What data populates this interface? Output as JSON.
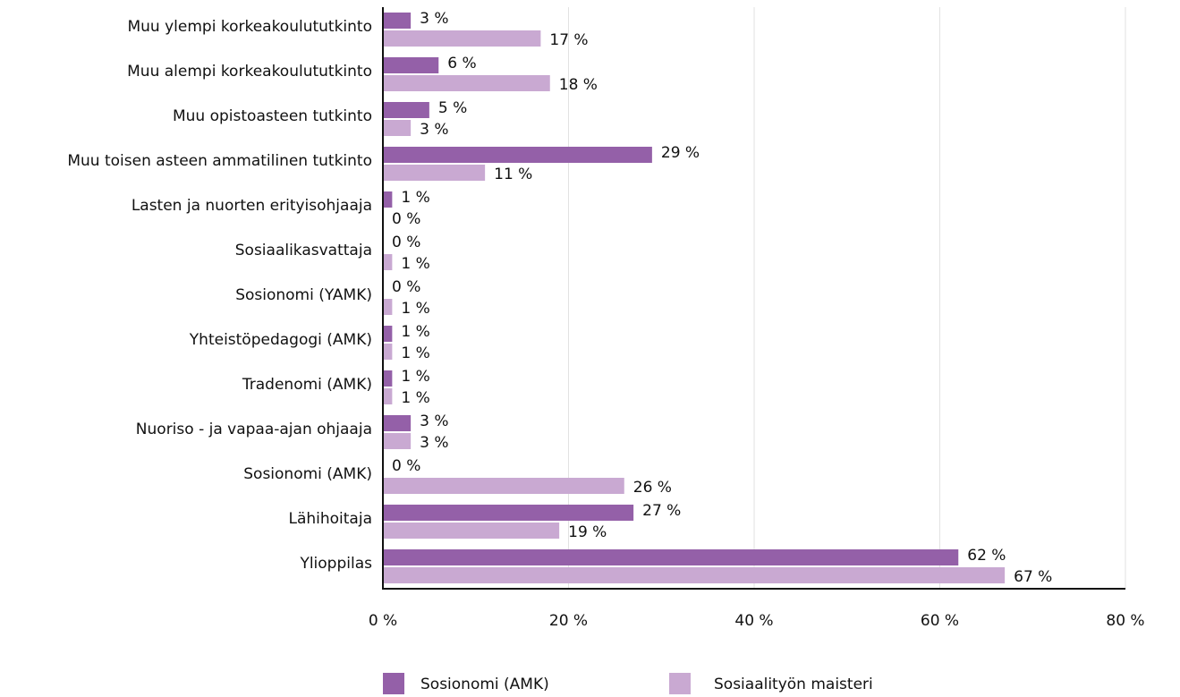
{
  "chart_data": {
    "type": "hbar",
    "categories": [
      "Muu ylempi korkeakoulututkinto",
      "Muu alempi korkeakoulututkinto",
      "Muu opistoasteen tutkinto",
      "Muu toisen asteen ammatilinen tutkinto",
      "Lasten ja nuorten erityisohjaaja",
      "Sosiaalikasvattaja",
      "Sosionomi (YAMK)",
      "Yhteistöpedagogi (AMK)",
      "Tradenomi (AMK)",
      "Nuoriso - ja vapaa-ajan ohjaaja",
      "Sosionomi (AMK)",
      "Lähihoitaja",
      "Ylioppilas"
    ],
    "series": [
      {
        "name": "Sosionomi (AMK)",
        "color": "#9460a8",
        "values": [
          3,
          6,
          5,
          29,
          1,
          0,
          0,
          1,
          1,
          3,
          0,
          27,
          62
        ],
        "value_labels": [
          "3 %",
          "6 %",
          "5 %",
          "29 %",
          "1 %",
          "0 %",
          "0 %",
          "1 %",
          "1 %",
          "3 %",
          "0 %",
          "27 %",
          "62 %"
        ]
      },
      {
        "name": "Sosiaalityön maisteri",
        "color": "#c9a9d2",
        "values": [
          17,
          18,
          3,
          11,
          0,
          1,
          1,
          1,
          1,
          3,
          26,
          19,
          67
        ],
        "value_labels": [
          "17 %",
          "18 %",
          "3 %",
          "11 %",
          "0 %",
          "1 %",
          "1 %",
          "1 %",
          "1 %",
          "3 %",
          "26 %",
          "19 %",
          "67 %"
        ]
      }
    ],
    "xlim": [
      0,
      80
    ],
    "xticks": [
      {
        "value": 0,
        "label": "0 %"
      },
      {
        "value": 20,
        "label": "20 %"
      },
      {
        "value": 40,
        "label": "40 %"
      },
      {
        "value": 60,
        "label": "60 %"
      },
      {
        "value": 80,
        "label": "80 %"
      }
    ],
    "grid": true,
    "legend": "bottom"
  }
}
